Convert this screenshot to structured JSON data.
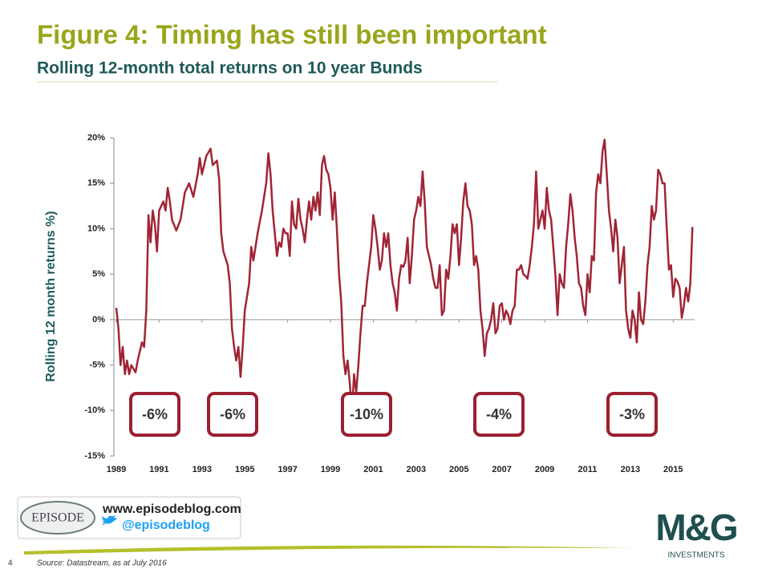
{
  "chart_data": {
    "type": "line",
    "title": "Figure 4: Timing has still been important",
    "subtitle": "Rolling 12-month total returns on 10 year Bunds",
    "y_label": "Rolling 12 month returns %)",
    "color": "#a02535",
    "x": [
      1989.0,
      1989.1,
      1989.2,
      1989.3,
      1989.4,
      1989.5,
      1989.6,
      1989.7,
      1989.9,
      1990.0,
      1990.2,
      1990.3,
      1990.4,
      1990.5,
      1990.6,
      1990.7,
      1990.8,
      1990.9,
      1991.0,
      1991.2,
      1991.3,
      1991.4,
      1991.5,
      1991.6,
      1991.8,
      1992.0,
      1992.2,
      1992.4,
      1992.6,
      1992.8,
      1992.9,
      1993.0,
      1993.2,
      1993.4,
      1993.5,
      1993.7,
      1993.8,
      1993.9,
      1994.0,
      1994.2,
      1994.3,
      1994.4,
      1994.5,
      1994.6,
      1994.7,
      1994.8,
      1994.9,
      1995.0,
      1995.2,
      1995.3,
      1995.4,
      1995.6,
      1995.8,
      1996.0,
      1996.1,
      1996.2,
      1996.3,
      1996.4,
      1996.5,
      1996.6,
      1996.7,
      1996.8,
      1996.9,
      1997.0,
      1997.1,
      1997.2,
      1997.3,
      1997.4,
      1997.5,
      1997.6,
      1997.7,
      1997.8,
      1997.9,
      1998.0,
      1998.1,
      1998.2,
      1998.3,
      1998.4,
      1998.5,
      1998.6,
      1998.7,
      1998.8,
      1998.9,
      1999.0,
      1999.1,
      1999.2,
      1999.3,
      1999.4,
      1999.5,
      1999.6,
      1999.7,
      1999.8,
      1999.9,
      2000.0,
      2000.1,
      2000.2,
      2000.3,
      2000.4,
      2000.5,
      2000.6,
      2000.7,
      2000.8,
      2000.9,
      2001.0,
      2001.1,
      2001.2,
      2001.3,
      2001.4,
      2001.5,
      2001.6,
      2001.7,
      2001.8,
      2001.9,
      2002.0,
      2002.1,
      2002.2,
      2002.3,
      2002.4,
      2002.5,
      2002.6,
      2002.7,
      2002.8,
      2002.9,
      2003.0,
      2003.1,
      2003.2,
      2003.3,
      2003.4,
      2003.5,
      2003.6,
      2003.7,
      2003.8,
      2003.9,
      2004.0,
      2004.1,
      2004.2,
      2004.3,
      2004.4,
      2004.5,
      2004.6,
      2004.7,
      2004.8,
      2004.9,
      2005.0,
      2005.1,
      2005.2,
      2005.3,
      2005.4,
      2005.5,
      2005.6,
      2005.7,
      2005.8,
      2005.9,
      2006.0,
      2006.1,
      2006.2,
      2006.3,
      2006.4,
      2006.5,
      2006.6,
      2006.7,
      2006.8,
      2006.9,
      2007.0,
      2007.1,
      2007.2,
      2007.3,
      2007.4,
      2007.5,
      2007.6,
      2007.7,
      2007.8,
      2007.9,
      2008.0,
      2008.1,
      2008.2,
      2008.3,
      2008.4,
      2008.5,
      2008.6,
      2008.7,
      2008.8,
      2008.9,
      2009.0,
      2009.1,
      2009.2,
      2009.3,
      2009.4,
      2009.5,
      2009.6,
      2009.7,
      2009.8,
      2009.9,
      2010.0,
      2010.1,
      2010.2,
      2010.3,
      2010.4,
      2010.5,
      2010.6,
      2010.7,
      2010.8,
      2010.9,
      2011.0,
      2011.1,
      2011.2,
      2011.3,
      2011.4,
      2011.5,
      2011.6,
      2011.7,
      2011.8,
      2011.9,
      2012.0,
      2012.1,
      2012.2,
      2012.3,
      2012.4,
      2012.5,
      2012.6,
      2012.7,
      2012.8,
      2012.9,
      2013.0,
      2013.1,
      2013.2,
      2013.3,
      2013.4,
      2013.5,
      2013.6,
      2013.7,
      2013.8,
      2013.9,
      2014.0,
      2014.1,
      2014.2,
      2014.3,
      2014.4,
      2014.5,
      2014.6,
      2014.7,
      2014.8,
      2014.9,
      2015.0,
      2015.1,
      2015.2,
      2015.3,
      2015.4,
      2015.5,
      2015.6,
      2015.7,
      2015.8,
      2015.9
    ],
    "values": [
      1.3,
      -1,
      -5,
      -3,
      -6,
      -4.5,
      -6,
      -5,
      -5.8,
      -4.5,
      -2.5,
      -3,
      1,
      11.5,
      8.5,
      12,
      10.5,
      7.5,
      12,
      13,
      12,
      14.5,
      13,
      11,
      9.8,
      11,
      14,
      15,
      13.5,
      16,
      17.8,
      16,
      18,
      18.8,
      17,
      17.5,
      15.5,
      9.5,
      7.5,
      6,
      4,
      -1,
      -3,
      -4.5,
      -3,
      -6.3,
      -3,
      1,
      4,
      8,
      6.5,
      9.5,
      12,
      15,
      18.3,
      16,
      12,
      9.5,
      7,
      8.5,
      8,
      10,
      9.5,
      9.5,
      7,
      13,
      10.5,
      10,
      13.3,
      11,
      10,
      8.5,
      11,
      13,
      11,
      13.5,
      12,
      14,
      11.5,
      17,
      18,
      16.5,
      16,
      14.5,
      11,
      14,
      10,
      5,
      2,
      -4,
      -6,
      -4.5,
      -7,
      -10.3,
      -6,
      -8,
      -5,
      -1.5,
      1.5,
      1.5,
      4,
      6,
      8,
      11.5,
      10,
      8,
      5.5,
      6.5,
      9.5,
      8,
      9.5,
      6,
      4,
      3,
      1,
      4.5,
      6,
      5.8,
      6.5,
      9,
      4,
      7,
      11,
      12,
      13.5,
      12.5,
      16.3,
      13,
      8,
      7,
      6,
      4.5,
      3.5,
      3.5,
      6,
      0.5,
      1,
      5.5,
      4.5,
      7,
      10.5,
      9.5,
      10.5,
      6,
      9,
      13,
      15,
      12.5,
      12,
      10.5,
      6,
      7,
      5.5,
      1,
      -1,
      -4,
      -1.5,
      -1,
      0,
      1.8,
      -1.5,
      -1,
      1.5,
      1.8,
      0,
      1,
      0.5,
      -0.5,
      1,
      1.5,
      5.5,
      5.5,
      6,
      5,
      4.8,
      4.5,
      6,
      8,
      10.5,
      16.3,
      10,
      11,
      12,
      10,
      14.5,
      12,
      11,
      8,
      5,
      0.5,
      5,
      4,
      3.5,
      8,
      10.5,
      13.8,
      12,
      9,
      7,
      4,
      3.5,
      1.5,
      0.5,
      5,
      3,
      7,
      6.5,
      14,
      16,
      15,
      18.5,
      19.8,
      16,
      12,
      10,
      7.5,
      11,
      9,
      4,
      6,
      8,
      1,
      -1,
      -2,
      1,
      0,
      -2.5,
      3,
      0,
      -0.5,
      2,
      6,
      8,
      12.5,
      11,
      12,
      16.5,
      16,
      15,
      15,
      10,
      5.5,
      6,
      2.5,
      4.5,
      4.2,
      3.5,
      0.2,
      1.5,
      3.5,
      2,
      4,
      10.2
    ],
    "xlim": [
      1989,
      2016
    ],
    "xticks": [
      1989,
      1991,
      1993,
      1995,
      1997,
      1999,
      2001,
      2003,
      2005,
      2007,
      2009,
      2011,
      2013,
      2015
    ],
    "ylim": [
      -15,
      20
    ],
    "yticks": [
      {
        "value": -15,
        "label": "-15%"
      },
      {
        "value": -10,
        "label": "-10%"
      },
      {
        "value": -5,
        "label": "-5%"
      },
      {
        "value": 0,
        "label": "0%"
      },
      {
        "value": 5,
        "label": "5%"
      },
      {
        "value": 10,
        "label": "10%"
      },
      {
        "value": 15,
        "label": "15%"
      },
      {
        "value": 20,
        "label": "20%"
      }
    ],
    "annotations": [
      "-6%",
      "-6%",
      "-10%",
      "-4%",
      "-3%"
    ]
  },
  "footer": {
    "page_number": "4",
    "source": "Source: Datastream, as at July 2016",
    "episode_logo": "EPISODE",
    "website": "www.episodeblog.com",
    "twitter": "@episodeblog",
    "brand": "M&G",
    "brand_sub": "INVESTMENTS"
  }
}
